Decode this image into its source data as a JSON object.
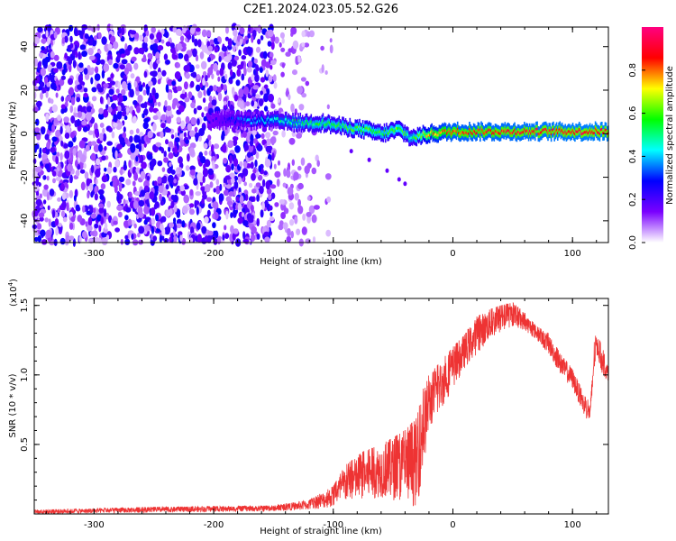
{
  "title": "C2E1.2024.023.05.52.G26",
  "chart_data": [
    {
      "type": "heatmap",
      "xlabel": "Height of straight line (km)",
      "ylabel": "Frequency (Hz)",
      "xlim": [
        -350,
        130
      ],
      "ylim": [
        -50,
        49
      ],
      "xticks": [
        -300,
        -200,
        -100,
        0,
        100
      ],
      "yticks": [
        40,
        20,
        0,
        -20,
        -40
      ],
      "colorbar": {
        "label": "Normalized spectral amplitude",
        "range": [
          0.0,
          1.0
        ],
        "ticks": [
          "0.0",
          "0.2",
          "0.4",
          "0.6",
          "0.8"
        ],
        "colors": [
          "#ffffff",
          "#7a00ff",
          "#0000ff",
          "#00ffff",
          "#00ff00",
          "#ffff00",
          "#ff0000",
          "#ff0080"
        ]
      },
      "features": {
        "noise_region_x": [
          -350,
          -110
        ],
        "ridge": {
          "x": [
            -200,
            -150,
            -130,
            -110,
            -90,
            -75,
            -60,
            -45,
            -35,
            -20,
            0,
            130
          ],
          "frequency": [
            6,
            6,
            5,
            5,
            3,
            2,
            0,
            2,
            -2,
            0,
            1,
            1
          ],
          "amplitude": [
            0.2,
            0.45,
            0.5,
            0.55,
            0.55,
            0.6,
            0.55,
            0.6,
            0.5,
            0.75,
            0.85,
            0.9
          ]
        },
        "faint_branch": {
          "x": [
            -85,
            -70,
            -55,
            -45,
            -40
          ],
          "frequency": [
            -8,
            -12,
            -17,
            -21,
            -23
          ]
        }
      }
    },
    {
      "type": "line",
      "xlabel": "Height of straight line (km)",
      "ylabel": "SNR (10 * v/v)",
      "y_multiplier": "(x10",
      "y_multiplier_exp": "4",
      "y_multiplier_close": ")",
      "xlim": [
        -350,
        130
      ],
      "ylim": [
        0,
        1.55
      ],
      "xticks": [
        -300,
        -200,
        -100,
        0,
        100
      ],
      "yticks": [
        0.5,
        1.0,
        1.5
      ],
      "ytick_labels": [
        "0.5",
        "1.0",
        "1.5"
      ],
      "color": "#ee3333",
      "envelope": {
        "x": [
          -350,
          -250,
          -150,
          -120,
          -100,
          -90,
          -75,
          -60,
          -40,
          -30,
          -25,
          -20,
          -10,
          0,
          10,
          20,
          30,
          40,
          50,
          60,
          70,
          80,
          90,
          100,
          110,
          115,
          118,
          120,
          125,
          130
        ],
        "low": [
          0.0,
          0.01,
          0.02,
          0.03,
          0.05,
          0.08,
          0.1,
          0.12,
          0.08,
          0.05,
          0.3,
          0.6,
          0.75,
          0.9,
          1.05,
          1.15,
          1.25,
          1.3,
          1.35,
          1.32,
          1.25,
          1.15,
          1.0,
          0.9,
          0.7,
          0.65,
          1.0,
          1.15,
          1.0,
          0.95
        ],
        "high": [
          0.03,
          0.05,
          0.06,
          0.1,
          0.2,
          0.35,
          0.45,
          0.5,
          0.6,
          0.7,
          0.9,
          1.0,
          1.1,
          1.2,
          1.3,
          1.42,
          1.47,
          1.5,
          1.52,
          1.45,
          1.35,
          1.3,
          1.15,
          1.05,
          0.85,
          0.8,
          1.25,
          1.3,
          1.2,
          1.05
        ]
      }
    }
  ]
}
